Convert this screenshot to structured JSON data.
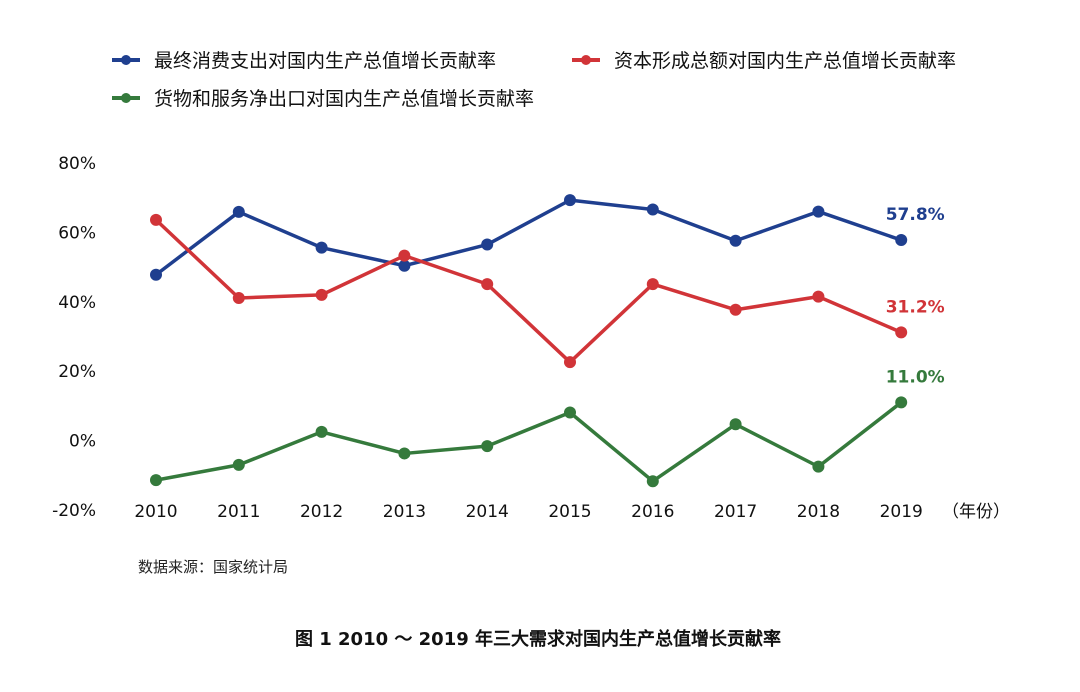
{
  "chart_data": {
    "type": "line",
    "x": [
      "2010",
      "2011",
      "2012",
      "2013",
      "2014",
      "2015",
      "2016",
      "2017",
      "2018",
      "2019"
    ],
    "xunit": "（年份）",
    "yticks": [
      "80%",
      "60%",
      "40%",
      "20%",
      "0%",
      "-20%"
    ],
    "ylim": [
      -20,
      80
    ],
    "grid": false,
    "legend_position": "top",
    "series": [
      {
        "name": "最终消费支出对国内生产总值增长贡献率",
        "color": "#1f3f8f",
        "values": [
          47.8,
          65.9,
          55.6,
          50.4,
          56.5,
          69.3,
          66.6,
          57.6,
          66.0,
          57.8
        ],
        "end_label": "57.8%"
      },
      {
        "name": "资本形成总额对国内生产总值增长贡献率",
        "color": "#d13438",
        "values": [
          63.6,
          41.1,
          42.0,
          53.3,
          45.1,
          22.6,
          45.1,
          37.7,
          41.5,
          31.2
        ],
        "end_label": "31.2%"
      },
      {
        "name": "货物和服务净出口对国内生产总值增长贡献率",
        "color": "#357a3c",
        "values": [
          -11.4,
          -7.0,
          2.5,
          -3.7,
          -1.6,
          8.1,
          -11.7,
          4.7,
          -7.5,
          11.0
        ],
        "end_label": "11.0%"
      }
    ],
    "source": "数据来源：国家统计局",
    "caption": "图 1  2010 ～ 2019 年三大需求对国内生产总值增长贡献率"
  }
}
